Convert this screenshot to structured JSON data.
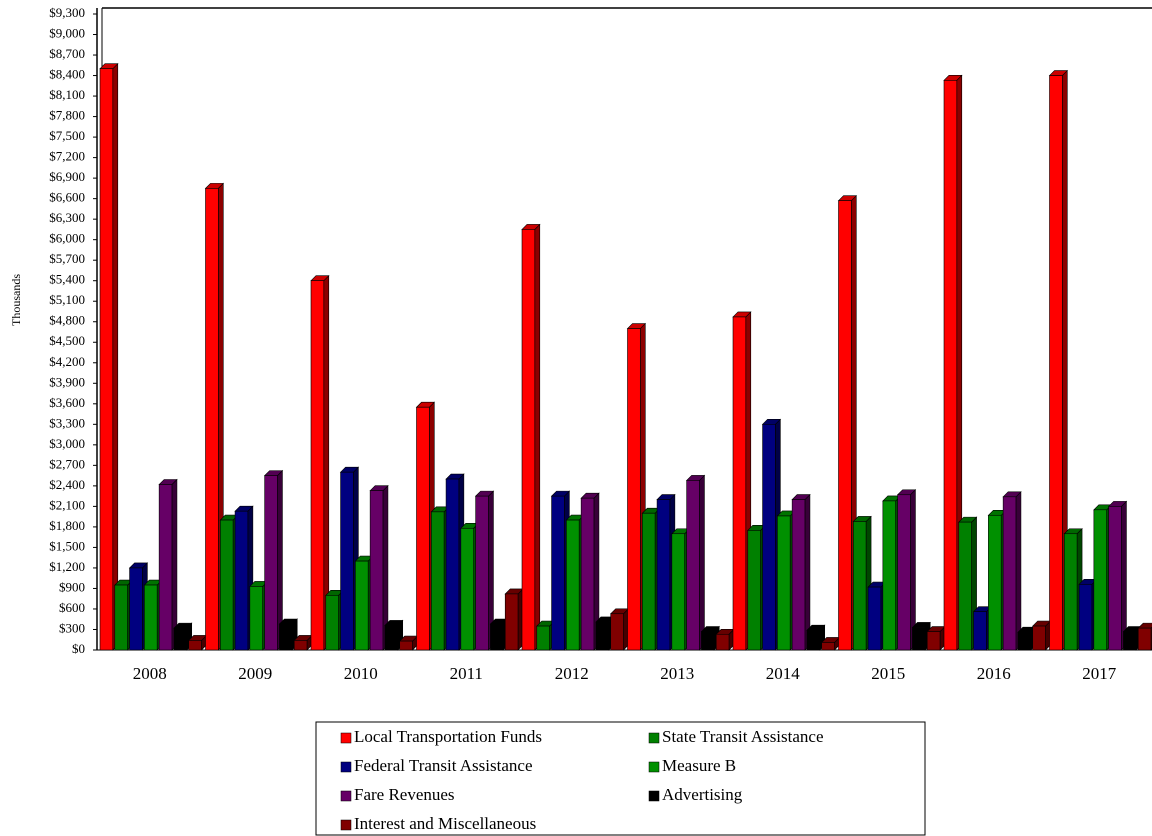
{
  "chart_data": {
    "type": "bar3d",
    "y_label": "Thousands",
    "categories": [
      "2008",
      "2009",
      "2010",
      "2011",
      "2012",
      "2013",
      "2014",
      "2015",
      "2016",
      "2017"
    ],
    "series": [
      {
        "name": "Local Transportation Funds",
        "color": "#ff0000",
        "values": [
          8500,
          6750,
          5400,
          3550,
          6150,
          4700,
          4870,
          6570,
          8330,
          8400
        ]
      },
      {
        "name": "State Transit Assistance",
        "color": "#008000",
        "values": [
          950,
          1900,
          800,
          2020,
          350,
          2000,
          1750,
          1880,
          1870,
          1700
        ]
      },
      {
        "name": "Federal Transit Assistance",
        "color": "#000080",
        "values": [
          1200,
          2030,
          2600,
          2500,
          2250,
          2200,
          3300,
          920,
          560,
          960
        ]
      },
      {
        "name": "Measure B",
        "color": "#009000",
        "values": [
          950,
          930,
          1300,
          1780,
          1900,
          1700,
          1960,
          2180,
          1970,
          2050
        ]
      },
      {
        "name": "Fare Revenues",
        "color": "#660066",
        "values": [
          2420,
          2550,
          2330,
          2250,
          2220,
          2480,
          2200,
          2270,
          2240,
          2100
        ]
      },
      {
        "name": "Advertising",
        "color": "#000000",
        "values": [
          320,
          380,
          360,
          380,
          410,
          270,
          290,
          330,
          260,
          270
        ]
      },
      {
        "name": "Interest and Miscellaneous",
        "color": "#800000",
        "values": [
          140,
          140,
          130,
          820,
          530,
          230,
          110,
          270,
          350,
          320
        ]
      }
    ],
    "ylim": [
      0,
      9300
    ],
    "yticks": [
      {
        "value": 0,
        "label": "$0"
      },
      {
        "value": 300,
        "label": "$300"
      },
      {
        "value": 600,
        "label": "$600"
      },
      {
        "value": 900,
        "label": "$900"
      },
      {
        "value": 1200,
        "label": "$1,200"
      },
      {
        "value": 1500,
        "label": "$1,500"
      },
      {
        "value": 1800,
        "label": "$1,800"
      },
      {
        "value": 2100,
        "label": "$2,100"
      },
      {
        "value": 2400,
        "label": "$2,400"
      },
      {
        "value": 2700,
        "label": "$2,700"
      },
      {
        "value": 3000,
        "label": "$3,000"
      },
      {
        "value": 3300,
        "label": "$3,300"
      },
      {
        "value": 3600,
        "label": "$3,600"
      },
      {
        "value": 3900,
        "label": "$3,900"
      },
      {
        "value": 4200,
        "label": "$4,200"
      },
      {
        "value": 4500,
        "label": "$4,500"
      },
      {
        "value": 4800,
        "label": "$4,800"
      },
      {
        "value": 5100,
        "label": "$5,100"
      },
      {
        "value": 5400,
        "label": "$5,400"
      },
      {
        "value": 5700,
        "label": "$5,700"
      },
      {
        "value": 6000,
        "label": "$6,000"
      },
      {
        "value": 6300,
        "label": "$6,300"
      },
      {
        "value": 6600,
        "label": "$6,600"
      },
      {
        "value": 6900,
        "label": "$6,900"
      },
      {
        "value": 7200,
        "label": "$7,200"
      },
      {
        "value": 7500,
        "label": "$7,500"
      },
      {
        "value": 7800,
        "label": "$7,800"
      },
      {
        "value": 8100,
        "label": "$8,100"
      },
      {
        "value": 8400,
        "label": "$8,400"
      },
      {
        "value": 8700,
        "label": "$8,700"
      },
      {
        "value": 9000,
        "label": "$9,000"
      },
      {
        "value": 9300,
        "label": "$9,300"
      }
    ],
    "legend": "bottom"
  }
}
